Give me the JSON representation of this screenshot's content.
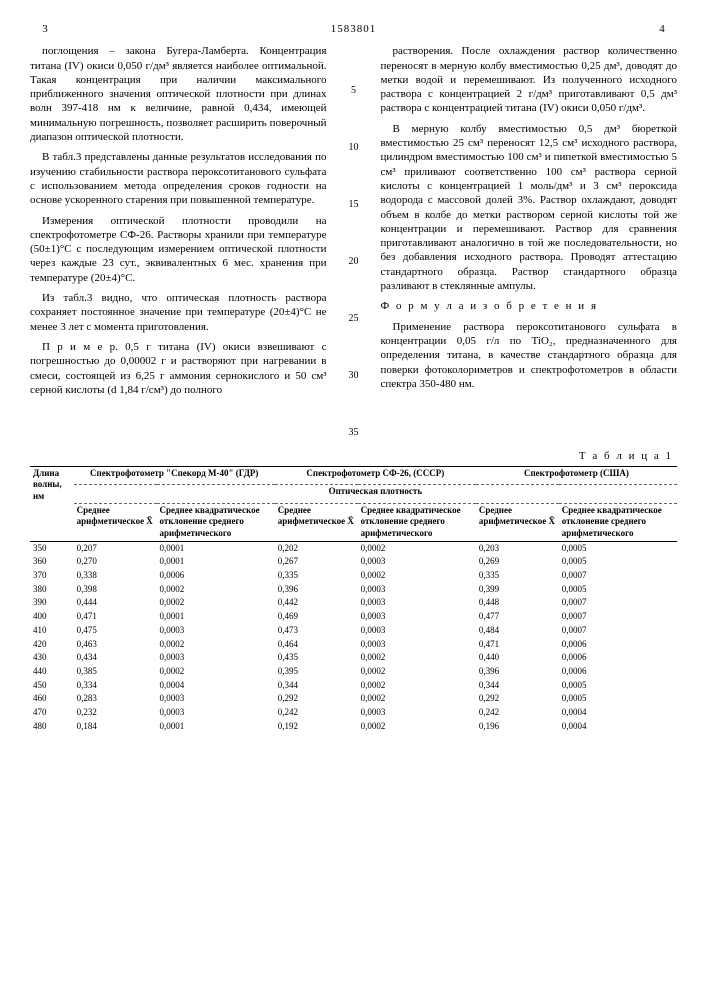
{
  "header": {
    "pageLeft": "3",
    "docNum": "1583801",
    "pageRight": "4"
  },
  "leftCol": {
    "p1": "поглощения – закона Бугера-Ламберта. Концентрация титана (IV) окиси 0,050 г/дм³ является наиболее оптимальной. Такая концентрация при наличии максимального приближенного значения оптической плотности при длинах волн 397-418 нм к величине, равной 0,434, имеющей минимальную погрешность, позволяет расширить поверочный диапазон оптической плотности.",
    "p2": "В табл.3 представлены данные результатов исследования по изучению стабильности раствора пероксотитанового сульфата с использованием метода определения сроков годности на основе ускоренного старения при повышенной температуре.",
    "p3": "Измерения оптической плотности проводили на спектрофотометре СФ-26. Растворы хранили при температуре (50±1)°С с последующим измерением оптической плотности через каждые 23 сут., эквивалентных 6 мес. хранения при температуре (20±4)°С.",
    "p4": "Из табл.3 видно, что оптическая плотность раствора сохраняет постоянное значение при температуре (20±4)°С не менее 3 лет с момента приготовления.",
    "p5": "П р и м е р. 0,5 г титана (IV) окиси взвешивают с погрешностью до 0,00002 г и растворяют при нагревании в смеси, состоящей из 6,25 г аммония сернокислого и 50 см³ серной кислоты (d 1,84 г/см³) до полного"
  },
  "rightCol": {
    "p1": "растворения. После охлаждения раствор количественно переносят в мерную колбу вместимостью 0,25 дм³, доводят до метки водой и перемешивают. Из полученного исходного раствора с концентрацией 2 г/дм³ приготавливают 0,5 дм³ раствора с концентрацией титана (IV) окиси 0,050 г/дм³.",
    "p2": "В мерную колбу вместимостью 0,5 дм³ бюреткой вместимостью 25 см³ переносят 12,5 см³ исходного раствора, цилиндром вместимостью 100 см³ и пипеткой вместимостью 5 см³ приливают соответственно 100 см³ раствора серной кислоты с концентрацией 1 моль/дм³ и 3 см³ пероксида водорода с массовой долей 3%. Раствор охлаждают, доводят объем в колбе до метки раствором серной кислоты той же концентрации и перемешивают. Раствор для сравнения приготавливают аналогично в той же последовательности, но без добавления исходного раствора. Проводят аттестацию стандартного образца. Раствор стандартного образца разливают в стеклянные ампулы.",
    "formula": "Ф о р м у л а   и з о б р е т е н и я",
    "p3": "Применение раствора пероксотитанового сульфата в концентрации 0,05 г/л по TiO₂, предназначенного для определения титана, в качестве стандартного образца для поверки фотоколориметров и спектрофотометров в области спектра 350-480 нм."
  },
  "gutter": [
    "5",
    "10",
    "15",
    "20",
    "25",
    "30",
    "35"
  ],
  "table": {
    "label": "Т а б л и ц а  1",
    "h_wave": "Длина волны, нм",
    "h_g1": "Спектрофотометр \"Спекорд М-40\" (ГДР)",
    "h_g2": "Спектрофотометр СФ-26, (СССР)",
    "h_g3": "Спектрофотометр (США)",
    "h_density": "Оптическая плотность",
    "h_mean": "Среднее арифметическое X̄",
    "h_dev1": "Среднее квадратическое отклонение среднего арифметического",
    "h_dev2": "Среднее квадратическое отклонение среднего арифметического",
    "h_dev3": "Среднее квадратическое отклонение среднего арифметического",
    "rows": [
      [
        "350",
        "0,207",
        "0,0001",
        "0,202",
        "0,0002",
        "0,203",
        "0,0005"
      ],
      [
        "360",
        "0,270",
        "0,0001",
        "0,267",
        "0,0003",
        "0,269",
        "0,0005"
      ],
      [
        "370",
        "0,338",
        "0,0006",
        "0,335",
        "0,0002",
        "0,335",
        "0,0007"
      ],
      [
        "380",
        "0,398",
        "0,0002",
        "0,396",
        "0,0003",
        "0,399",
        "0,0005"
      ],
      [
        "390",
        "0,444",
        "0,0002",
        "0,442",
        "0,0003",
        "0,448",
        "0,0007"
      ],
      [
        "400",
        "0,471",
        "0,0001",
        "0,469",
        "0,0003",
        "0,477",
        "0,0007"
      ],
      [
        "410",
        "0,475",
        "0,0003",
        "0,473",
        "0,0003",
        "0,484",
        "0,0007"
      ],
      [
        "420",
        "0,463",
        "0,0002",
        "0,464",
        "0,0003",
        "0,471",
        "0,0006"
      ],
      [
        "430",
        "0,434",
        "0,0003",
        "0,435",
        "0,0002",
        "0,440",
        "0,0006"
      ],
      [
        "440",
        "0,385",
        "0,0002",
        "0,395",
        "0,0002",
        "0,396",
        "0,0006"
      ],
      [
        "450",
        "0,334",
        "0,0004",
        "0,344",
        "0,0002",
        "0,344",
        "0,0005"
      ],
      [
        "460",
        "0,283",
        "0,0003",
        "0,292",
        "0,0002",
        "0,292",
        "0,0005"
      ],
      [
        "470",
        "0,232",
        "0,0003",
        "0,242",
        "0,0003",
        "0,242",
        "0,0004"
      ],
      [
        "480",
        "0,184",
        "0,0001",
        "0,192",
        "0,0002",
        "0,196",
        "0,0004"
      ]
    ]
  }
}
